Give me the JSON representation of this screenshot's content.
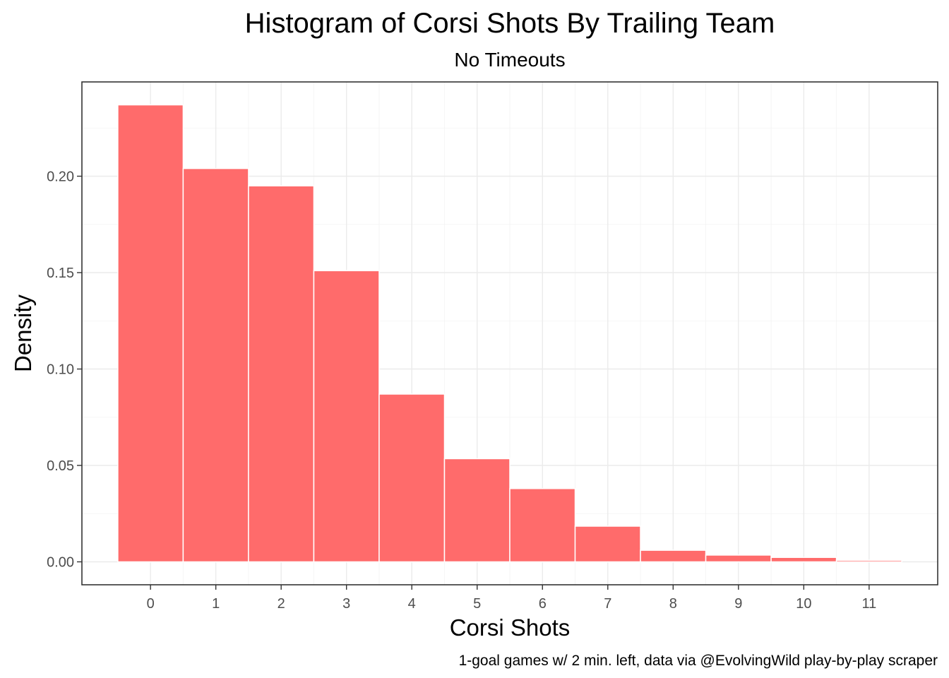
{
  "chart_data": {
    "type": "bar",
    "title": "Histogram of Corsi Shots By Trailing Team",
    "subtitle": "No Timeouts",
    "xlabel": "Corsi Shots",
    "ylabel": "Density",
    "caption": "1-goal games w/ 2 min. left, data via @EvolvingWild play-by-play scraper",
    "categories": [
      "0",
      "1",
      "2",
      "3",
      "4",
      "5",
      "6",
      "7",
      "8",
      "9",
      "10",
      "11"
    ],
    "values": [
      0.237,
      0.204,
      0.195,
      0.151,
      0.087,
      0.0535,
      0.038,
      0.0185,
      0.006,
      0.0035,
      0.0023,
      0.0008
    ],
    "x_ticks": [
      0,
      1,
      2,
      3,
      4,
      5,
      6,
      7,
      8,
      9,
      10,
      11
    ],
    "x_tick_labels": [
      "0",
      "1",
      "2",
      "3",
      "4",
      "5",
      "6",
      "7",
      "8",
      "9",
      "10",
      "11"
    ],
    "y_ticks": [
      0.0,
      0.05,
      0.1,
      0.15,
      0.2
    ],
    "y_tick_labels": [
      "0.00",
      "0.05",
      "0.10",
      "0.15",
      "0.20"
    ],
    "xlim": [
      -1.05,
      12.05
    ],
    "ylim": [
      -0.0119,
      0.2489
    ],
    "grid": true,
    "legend": "none",
    "bar_color": "#ff6b6b"
  }
}
